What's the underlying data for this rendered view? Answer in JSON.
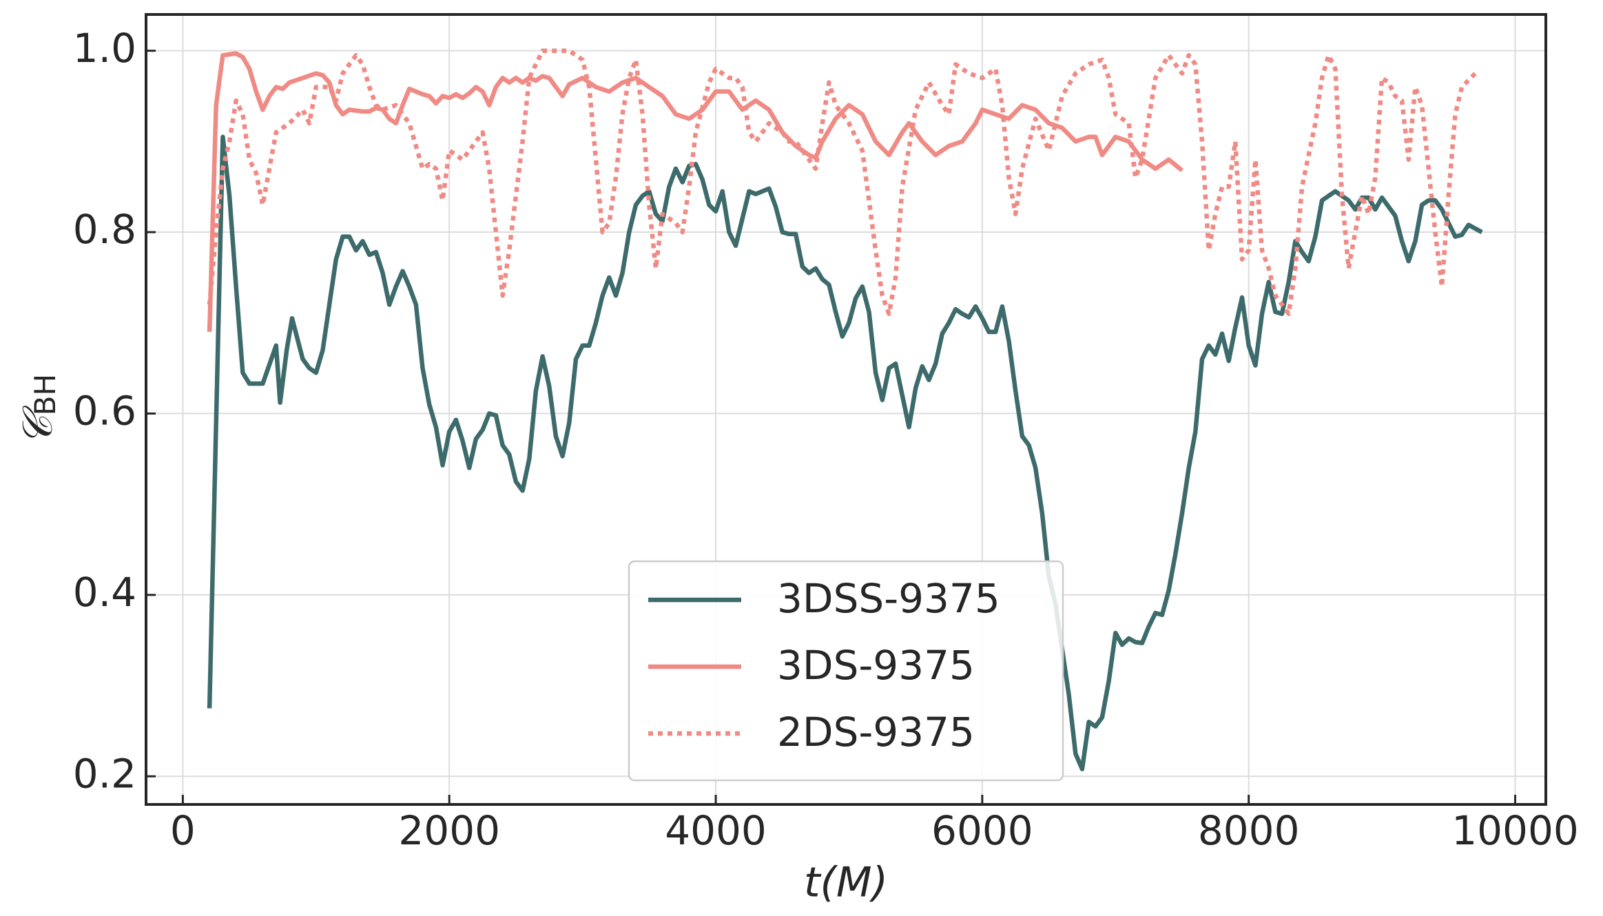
{
  "chart_data": {
    "type": "line",
    "xlabel": "t(M)",
    "ylabel": {
      "main": "𝒞",
      "sub": "BH"
    },
    "xlim": [
      -276,
      10230
    ],
    "ylim": [
      0.169,
      1.04
    ],
    "xticks": [
      0,
      2000,
      4000,
      6000,
      8000,
      10000
    ],
    "yticks": [
      0.2,
      0.4,
      0.6,
      0.8,
      {
        "value": 1,
        "label": "1.0"
      }
    ],
    "grid": true,
    "legend": "lower center",
    "series": [
      {
        "name": "3DSS-9375",
        "color": "#3d6b6b",
        "style": "solid",
        "x": [
          200,
          300,
          350,
          400,
          450,
          500,
          600,
          700,
          730,
          780,
          820,
          900,
          950,
          1000,
          1050,
          1100,
          1150,
          1200,
          1250,
          1300,
          1350,
          1400,
          1450,
          1500,
          1550,
          1600,
          1650,
          1700,
          1750,
          1800,
          1850,
          1900,
          1950,
          2000,
          2050,
          2100,
          2150,
          2200,
          2250,
          2300,
          2350,
          2400,
          2450,
          2500,
          2550,
          2600,
          2650,
          2700,
          2750,
          2800,
          2850,
          2900,
          2950,
          3000,
          3050,
          3100,
          3150,
          3200,
          3250,
          3300,
          3350,
          3400,
          3450,
          3500,
          3550,
          3600,
          3650,
          3700,
          3750,
          3800,
          3850,
          3900,
          3950,
          4000,
          4050,
          4100,
          4150,
          4200,
          4250,
          4300,
          4350,
          4400,
          4450,
          4500,
          4550,
          4600,
          4650,
          4700,
          4750,
          4800,
          4850,
          4900,
          4950,
          5000,
          5050,
          5100,
          5150,
          5200,
          5250,
          5300,
          5350,
          5400,
          5450,
          5500,
          5550,
          5600,
          5650,
          5700,
          5750,
          5800,
          5850,
          5900,
          5950,
          6000,
          6050,
          6100,
          6150,
          6200,
          6250,
          6300,
          6350,
          6400,
          6450,
          6500,
          6550,
          6600,
          6650,
          6700,
          6750,
          6800,
          6850,
          6900,
          6950,
          7000,
          7050,
          7100,
          7150,
          7200,
          7250,
          7300,
          7350,
          7400,
          7450,
          7500,
          7550,
          7600,
          7650,
          7700,
          7750,
          7800,
          7850,
          7900,
          7950,
          8000,
          8050,
          8100,
          8150,
          8200,
          8250,
          8300,
          8350,
          8400,
          8450,
          8500,
          8550,
          8600,
          8650,
          8700,
          8750,
          8800,
          8850,
          8900,
          8950,
          9000,
          9050,
          9100,
          9150,
          9200,
          9250,
          9300,
          9350,
          9400,
          9450,
          9500,
          9550,
          9600,
          9650,
          9750
        ],
        "values": [
          0.275,
          0.905,
          0.84,
          0.74,
          0.645,
          0.633,
          0.633,
          0.675,
          0.612,
          0.67,
          0.705,
          0.66,
          0.65,
          0.645,
          0.67,
          0.72,
          0.77,
          0.795,
          0.795,
          0.78,
          0.79,
          0.775,
          0.778,
          0.755,
          0.72,
          0.74,
          0.757,
          0.74,
          0.72,
          0.65,
          0.61,
          0.585,
          0.543,
          0.58,
          0.593,
          0.57,
          0.54,
          0.572,
          0.582,
          0.6,
          0.598,
          0.565,
          0.555,
          0.525,
          0.515,
          0.55,
          0.625,
          0.663,
          0.63,
          0.575,
          0.553,
          0.59,
          0.66,
          0.675,
          0.675,
          0.7,
          0.73,
          0.75,
          0.73,
          0.755,
          0.8,
          0.83,
          0.84,
          0.845,
          0.82,
          0.812,
          0.85,
          0.87,
          0.855,
          0.873,
          0.875,
          0.858,
          0.83,
          0.823,
          0.845,
          0.8,
          0.785,
          0.815,
          0.845,
          0.842,
          0.845,
          0.848,
          0.828,
          0.8,
          0.798,
          0.798,
          0.762,
          0.755,
          0.76,
          0.748,
          0.742,
          0.712,
          0.685,
          0.7,
          0.727,
          0.74,
          0.712,
          0.645,
          0.615,
          0.65,
          0.655,
          0.62,
          0.585,
          0.628,
          0.652,
          0.637,
          0.655,
          0.688,
          0.7,
          0.715,
          0.71,
          0.706,
          0.718,
          0.705,
          0.69,
          0.69,
          0.718,
          0.68,
          0.625,
          0.575,
          0.565,
          0.54,
          0.49,
          0.42,
          0.39,
          0.34,
          0.29,
          0.225,
          0.208,
          0.26,
          0.255,
          0.265,
          0.305,
          0.358,
          0.345,
          0.352,
          0.348,
          0.347,
          0.365,
          0.38,
          0.378,
          0.405,
          0.445,
          0.49,
          0.54,
          0.58,
          0.66,
          0.675,
          0.665,
          0.688,
          0.658,
          0.695,
          0.728,
          0.675,
          0.653,
          0.71,
          0.745,
          0.712,
          0.71,
          0.745,
          0.79,
          0.778,
          0.768,
          0.795,
          0.835,
          0.84,
          0.845,
          0.84,
          0.835,
          0.825,
          0.838,
          0.838,
          0.825,
          0.838,
          0.828,
          0.818,
          0.79,
          0.768,
          0.79,
          0.83,
          0.835,
          0.835,
          0.825,
          0.81,
          0.795,
          0.797,
          0.808,
          0.8
        ]
      },
      {
        "name": "3DS-9375",
        "color": "#f08a84",
        "style": "solid",
        "x": [
          200,
          250,
          300,
          400,
          450,
          500,
          550,
          600,
          650,
          700,
          750,
          800,
          900,
          1000,
          1050,
          1100,
          1150,
          1200,
          1250,
          1350,
          1400,
          1450,
          1500,
          1550,
          1600,
          1650,
          1700,
          1800,
          1850,
          1900,
          1950,
          2000,
          2050,
          2100,
          2150,
          2200,
          2250,
          2300,
          2350,
          2400,
          2450,
          2500,
          2550,
          2600,
          2650,
          2700,
          2750,
          2800,
          2850,
          2900,
          3000,
          3100,
          3200,
          3300,
          3400,
          3500,
          3600,
          3700,
          3800,
          3900,
          4000,
          4100,
          4200,
          4300,
          4400,
          4500,
          4600,
          4700,
          4750,
          4800,
          4900,
          5000,
          5100,
          5200,
          5300,
          5400,
          5450,
          5550,
          5650,
          5750,
          5850,
          5950,
          6000,
          6100,
          6200,
          6300,
          6400,
          6500,
          6600,
          6700,
          6800,
          6850,
          6900,
          7000,
          7100,
          7200,
          7300,
          7400,
          7500
        ],
        "values": [
          0.69,
          0.94,
          0.995,
          0.997,
          0.993,
          0.98,
          0.955,
          0.935,
          0.95,
          0.96,
          0.958,
          0.965,
          0.97,
          0.975,
          0.973,
          0.965,
          0.94,
          0.93,
          0.935,
          0.933,
          0.933,
          0.937,
          0.935,
          0.925,
          0.92,
          0.94,
          0.958,
          0.952,
          0.95,
          0.942,
          0.95,
          0.948,
          0.952,
          0.948,
          0.953,
          0.96,
          0.955,
          0.94,
          0.96,
          0.97,
          0.965,
          0.97,
          0.965,
          0.97,
          0.967,
          0.972,
          0.97,
          0.96,
          0.95,
          0.963,
          0.97,
          0.96,
          0.955,
          0.965,
          0.97,
          0.96,
          0.95,
          0.93,
          0.925,
          0.935,
          0.955,
          0.955,
          0.935,
          0.945,
          0.935,
          0.91,
          0.895,
          0.885,
          0.882,
          0.9,
          0.925,
          0.94,
          0.93,
          0.9,
          0.885,
          0.91,
          0.92,
          0.9,
          0.885,
          0.895,
          0.9,
          0.92,
          0.935,
          0.93,
          0.925,
          0.94,
          0.935,
          0.92,
          0.915,
          0.9,
          0.905,
          0.905,
          0.885,
          0.905,
          0.9,
          0.88,
          0.87,
          0.88,
          0.868
        ]
      },
      {
        "name": "2DS-9375",
        "color": "#f08a84",
        "style": "dotted",
        "x": [
          200,
          250,
          300,
          350,
          400,
          450,
          500,
          550,
          600,
          650,
          700,
          800,
          900,
          950,
          1000,
          1100,
          1150,
          1200,
          1300,
          1350,
          1400,
          1450,
          1500,
          1600,
          1700,
          1800,
          1850,
          1900,
          1950,
          2000,
          2100,
          2200,
          2250,
          2300,
          2350,
          2400,
          2450,
          2500,
          2550,
          2600,
          2700,
          2900,
          3000,
          3050,
          3100,
          3150,
          3200,
          3250,
          3300,
          3350,
          3400,
          3450,
          3500,
          3550,
          3600,
          3700,
          3750,
          3800,
          3850,
          3950,
          4000,
          4050,
          4100,
          4150,
          4200,
          4250,
          4300,
          4400,
          4500,
          4550,
          4600,
          4700,
          4750,
          4800,
          4850,
          4900,
          5000,
          5100,
          5200,
          5250,
          5300,
          5350,
          5400,
          5500,
          5600,
          5700,
          5750,
          5800,
          5900,
          6000,
          6100,
          6150,
          6200,
          6250,
          6300,
          6400,
          6500,
          6600,
          6700,
          6800,
          6900,
          6950,
          7000,
          7100,
          7150,
          7200,
          7300,
          7400,
          7450,
          7500,
          7550,
          7600,
          7650,
          7700,
          7750,
          7800,
          7850,
          7900,
          7950,
          8000,
          8050,
          8100,
          8150,
          8200,
          8300,
          8350,
          8400,
          8500,
          8550,
          8600,
          8650,
          8700,
          8750,
          8800,
          8850,
          8900,
          8950,
          9000,
          9050,
          9100,
          9150,
          9200,
          9250,
          9300,
          9350,
          9400,
          9450,
          9500,
          9550,
          9600,
          9700
        ],
        "values": [
          0.72,
          0.8,
          0.87,
          0.9,
          0.945,
          0.93,
          0.88,
          0.865,
          0.83,
          0.87,
          0.91,
          0.92,
          0.935,
          0.92,
          0.96,
          0.96,
          0.945,
          0.975,
          0.995,
          0.985,
          0.96,
          0.94,
          0.935,
          0.94,
          0.92,
          0.87,
          0.875,
          0.87,
          0.835,
          0.89,
          0.88,
          0.9,
          0.91,
          0.87,
          0.8,
          0.73,
          0.78,
          0.84,
          0.9,
          0.97,
          1.0,
          1.0,
          0.99,
          0.96,
          0.88,
          0.8,
          0.81,
          0.86,
          0.93,
          0.97,
          0.99,
          0.93,
          0.83,
          0.76,
          0.82,
          0.81,
          0.8,
          0.85,
          0.91,
          0.965,
          0.98,
          0.975,
          0.97,
          0.97,
          0.96,
          0.91,
          0.9,
          0.92,
          0.91,
          0.9,
          0.9,
          0.88,
          0.87,
          0.92,
          0.965,
          0.94,
          0.92,
          0.89,
          0.78,
          0.73,
          0.71,
          0.75,
          0.85,
          0.935,
          0.965,
          0.94,
          0.93,
          0.985,
          0.975,
          0.97,
          0.98,
          0.94,
          0.86,
          0.82,
          0.87,
          0.925,
          0.89,
          0.95,
          0.975,
          0.985,
          0.99,
          0.97,
          0.93,
          0.92,
          0.86,
          0.88,
          0.97,
          0.995,
          0.985,
          0.975,
          0.995,
          0.985,
          0.9,
          0.78,
          0.82,
          0.85,
          0.85,
          0.9,
          0.77,
          0.78,
          0.88,
          0.78,
          0.76,
          0.73,
          0.71,
          0.76,
          0.85,
          0.92,
          0.97,
          0.995,
          0.98,
          0.84,
          0.76,
          0.8,
          0.84,
          0.82,
          0.86,
          0.97,
          0.965,
          0.95,
          0.945,
          0.88,
          0.96,
          0.94,
          0.87,
          0.8,
          0.74,
          0.84,
          0.93,
          0.96,
          0.975
        ]
      }
    ]
  }
}
